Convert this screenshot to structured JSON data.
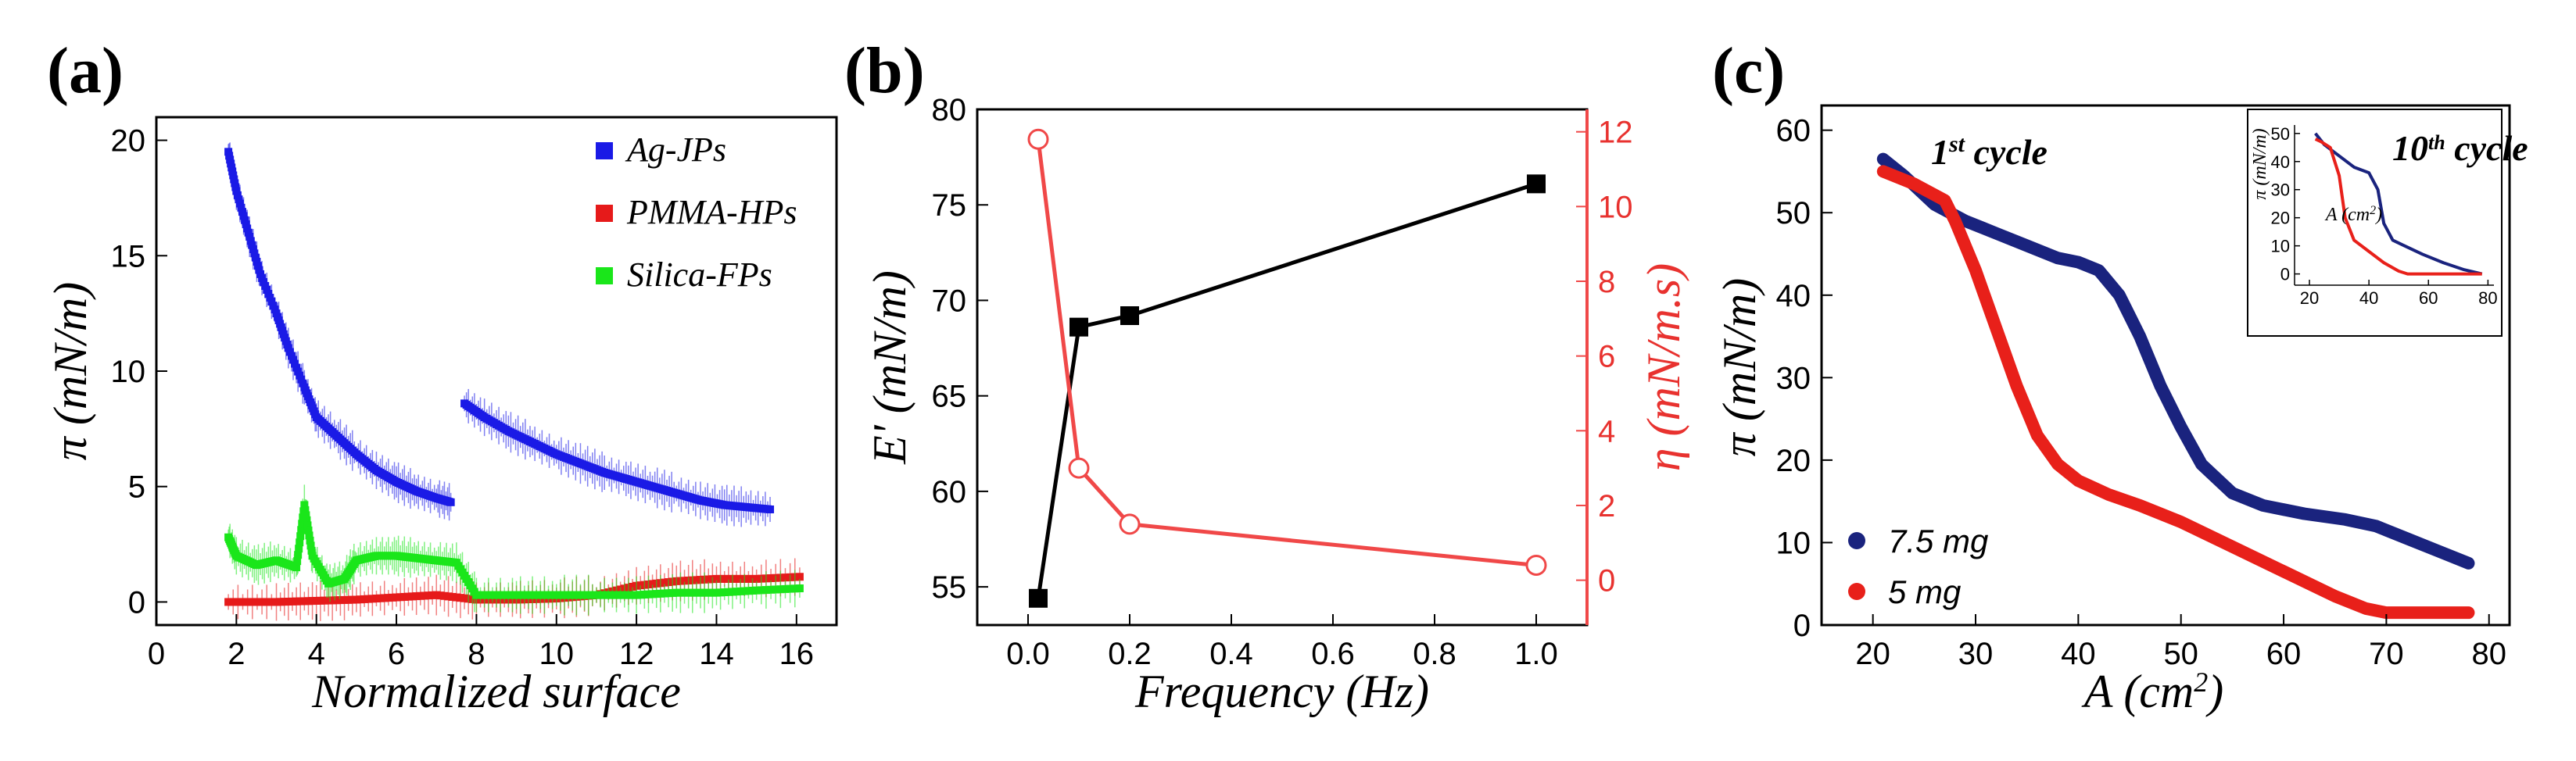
{
  "figure": {
    "labels": {
      "a": "(a)",
      "b": "(b)",
      "c": "(c)"
    }
  },
  "chart_data": [
    {
      "id": "a",
      "type": "scatter",
      "title": "",
      "xlabel": "Normalized surface",
      "ylabel": "π (mN/m)",
      "xlim": [
        0,
        17
      ],
      "ylim": [
        -1,
        21
      ],
      "xticks": [
        0,
        2,
        4,
        6,
        8,
        10,
        12,
        14,
        16
      ],
      "yticks": [
        0,
        5,
        10,
        15,
        20
      ],
      "legend": {
        "placement": "top-right"
      },
      "series": [
        {
          "name": "Ag-JPs",
          "color": "#1a1ae6",
          "segments": [
            {
              "x": [
                1.8,
                2.0,
                2.3,
                2.6,
                3.0,
                3.3,
                3.7,
                4.0,
                4.5,
                5.0,
                5.5,
                6.0,
                6.5,
                7.0,
                7.4
              ],
              "y": [
                19.5,
                17.8,
                16.0,
                14.2,
                12.5,
                11.0,
                9.3,
                8.0,
                7.2,
                6.4,
                5.7,
                5.2,
                4.8,
                4.5,
                4.3
              ]
            },
            {
              "x": [
                7.7,
                8.2,
                8.8,
                9.4,
                10.0,
                10.6,
                11.2,
                11.8,
                12.4,
                13.0,
                13.6,
                14.2,
                14.8,
                15.4
              ],
              "y": [
                8.6,
                8.0,
                7.4,
                6.9,
                6.4,
                6.0,
                5.6,
                5.3,
                5.0,
                4.7,
                4.4,
                4.2,
                4.1,
                4.0
              ]
            }
          ]
        },
        {
          "name": "PMMA-HPs",
          "color": "#e61a1a",
          "segments": [
            {
              "x": [
                1.8,
                3.0,
                4.0,
                5.0,
                6.0,
                7.0,
                8.0,
                9.0,
                10.0,
                11.0,
                12.0,
                13.0,
                14.0,
                15.0,
                16.2
              ],
              "y": [
                0.0,
                0.0,
                0.05,
                0.1,
                0.2,
                0.3,
                0.1,
                0.1,
                0.15,
                0.3,
                0.7,
                0.9,
                1.0,
                1.0,
                1.1
              ]
            }
          ]
        },
        {
          "name": "Silica-FPs",
          "color": "#1ae61a",
          "segments": [
            {
              "x": [
                1.8,
                2.0,
                2.5,
                3.0,
                3.5,
                3.7,
                3.9,
                4.3,
                4.7,
                5.0,
                5.5,
                6.0,
                6.5,
                7.0,
                7.5,
                8.0,
                9.0,
                10.0,
                11.0,
                12.0,
                13.0,
                14.0,
                15.0,
                16.2
              ],
              "y": [
                2.8,
                2.0,
                1.6,
                1.8,
                1.5,
                4.2,
                2.0,
                0.8,
                1.0,
                1.8,
                2.0,
                2.0,
                1.9,
                1.8,
                1.7,
                0.3,
                0.3,
                0.3,
                0.3,
                0.3,
                0.4,
                0.4,
                0.5,
                0.6
              ]
            }
          ]
        }
      ]
    },
    {
      "id": "b",
      "type": "line",
      "title": "",
      "xlabel": "Frequency (Hz)",
      "ylabel": "E' (mN/m)",
      "y2label": "η (mN/m.s)",
      "xlim": [
        -0.1,
        1.1
      ],
      "ylim": [
        53,
        80
      ],
      "y2lim": [
        -1.2,
        12.6
      ],
      "xticks": [
        0.0,
        0.2,
        0.4,
        0.6,
        0.8,
        1.0
      ],
      "yticks": [
        55,
        60,
        65,
        70,
        75,
        80
      ],
      "y2ticks": [
        0,
        2,
        4,
        6,
        8,
        10,
        12
      ],
      "series": [
        {
          "name": "E'",
          "axis": "left",
          "color": "#000000",
          "marker": "filled-square",
          "x": [
            0.02,
            0.1,
            0.2,
            1.0
          ],
          "y": [
            54.4,
            68.6,
            69.2,
            76.1
          ]
        },
        {
          "name": "η",
          "axis": "right",
          "color": "#f04848",
          "marker": "open-circle",
          "x": [
            0.02,
            0.1,
            0.2,
            1.0
          ],
          "y": [
            11.8,
            3.0,
            1.5,
            0.4
          ]
        }
      ]
    },
    {
      "id": "c",
      "type": "line",
      "title": "",
      "xlabel": "A (cm2)",
      "ylabel": "π (mN/m)",
      "xlim": [
        15,
        82
      ],
      "ylim": [
        0,
        63
      ],
      "xticks": [
        20,
        30,
        40,
        50,
        60,
        70,
        80
      ],
      "yticks": [
        0,
        10,
        20,
        30,
        40,
        50,
        60
      ],
      "annotations": {
        "first_cycle": {
          "base": "1",
          "sup": "st",
          "rest": " cycle"
        }
      },
      "legend": {
        "placement": "bottom-left"
      },
      "series": [
        {
          "name": "7.5 mg",
          "color": "#1a237e",
          "x": [
            21,
            23,
            26,
            29,
            32,
            35,
            38,
            40,
            42,
            44,
            46,
            48,
            50,
            52,
            55,
            58,
            62,
            66,
            69,
            72,
            75,
            78
          ],
          "y": [
            56.5,
            54.5,
            51,
            49,
            47.5,
            46,
            44.5,
            44,
            43,
            40,
            35,
            29,
            24,
            19.5,
            16,
            14.5,
            13.5,
            12.8,
            12,
            10.5,
            9,
            7.5
          ]
        },
        {
          "name": "5 mg",
          "color": "#e8201a",
          "x": [
            21,
            24,
            27,
            28,
            30,
            32,
            34,
            36,
            38,
            40,
            43,
            46,
            50,
            55,
            60,
            65,
            68,
            70,
            74,
            78
          ],
          "y": [
            55,
            53.5,
            51.5,
            49,
            43,
            36,
            29,
            23,
            19.5,
            17.5,
            15.8,
            14.5,
            12.5,
            9.5,
            6.5,
            3.5,
            2,
            1.5,
            1.5,
            1.5
          ]
        }
      ],
      "inset": {
        "type": "line",
        "annotation": {
          "base": "10",
          "sup": "th",
          "rest": " cycle"
        },
        "xlabel": "A (cm2)",
        "ylabel": "π (mN/m)",
        "xlim": [
          15,
          82
        ],
        "ylim": [
          -4,
          53
        ],
        "xticks": [
          20,
          40,
          60,
          80
        ],
        "yticks": [
          0,
          10,
          20,
          30,
          40,
          50
        ],
        "series": [
          {
            "name": "7.5 mg",
            "color": "#1a237e",
            "x": [
              22,
              25,
              30,
              35,
              40,
              43,
              45,
              48,
              52,
              58,
              65,
              72,
              78
            ],
            "y": [
              50,
              46,
              42,
              38,
              36,
              30,
              18,
              12,
              10,
              7,
              4,
              1.5,
              0
            ]
          },
          {
            "name": "5 mg",
            "color": "#e8201a",
            "x": [
              22,
              24,
              27,
              30,
              32,
              35,
              40,
              45,
              50,
              53,
              60,
              70,
              78
            ],
            "y": [
              48,
              47,
              45,
              35,
              20,
              12,
              8,
              4,
              1,
              0,
              0,
              0,
              0
            ]
          }
        ]
      }
    }
  ]
}
